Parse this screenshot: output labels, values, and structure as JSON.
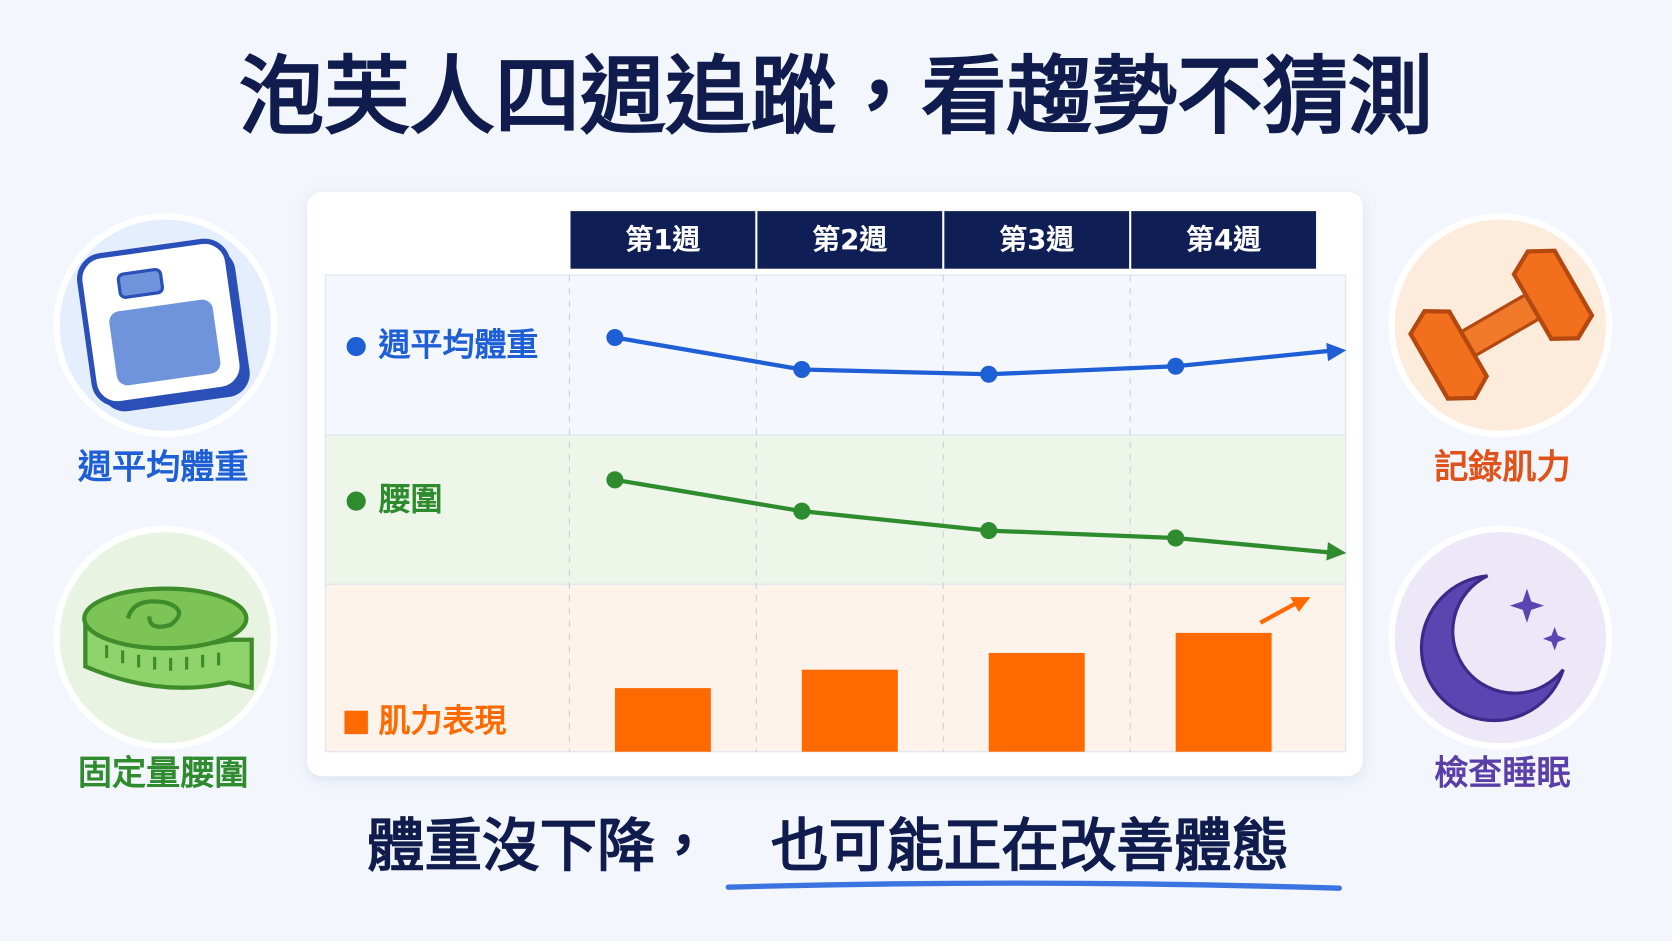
{
  "title": "泡芙人四週追蹤，看趨勢不猜測",
  "side_labels": {
    "left": [
      "週平均體重",
      "固定量腰圍"
    ],
    "right": [
      "記錄肌力",
      "檢查睡眠"
    ]
  },
  "caption": {
    "lead": "體重沒下降，",
    "emphasis": "也可能正在改善體態"
  },
  "chart_data": {
    "type": "line",
    "categories": [
      "第1週",
      "第2週",
      "第3週",
      "第4週"
    ],
    "ylim": [
      0,
      100
    ],
    "series": [
      {
        "name": "週平均體重",
        "type": "line",
        "color": "#1f5fd6",
        "values": [
          61,
          41,
          38,
          43
        ]
      },
      {
        "name": "腰圍",
        "type": "line",
        "color": "#2e8b2e",
        "values": [
          70,
          49,
          36,
          31
        ]
      },
      {
        "name": "肌力表現",
        "type": "bar",
        "color": "#ff6a00",
        "values": [
          38,
          49,
          59,
          71
        ]
      }
    ]
  }
}
